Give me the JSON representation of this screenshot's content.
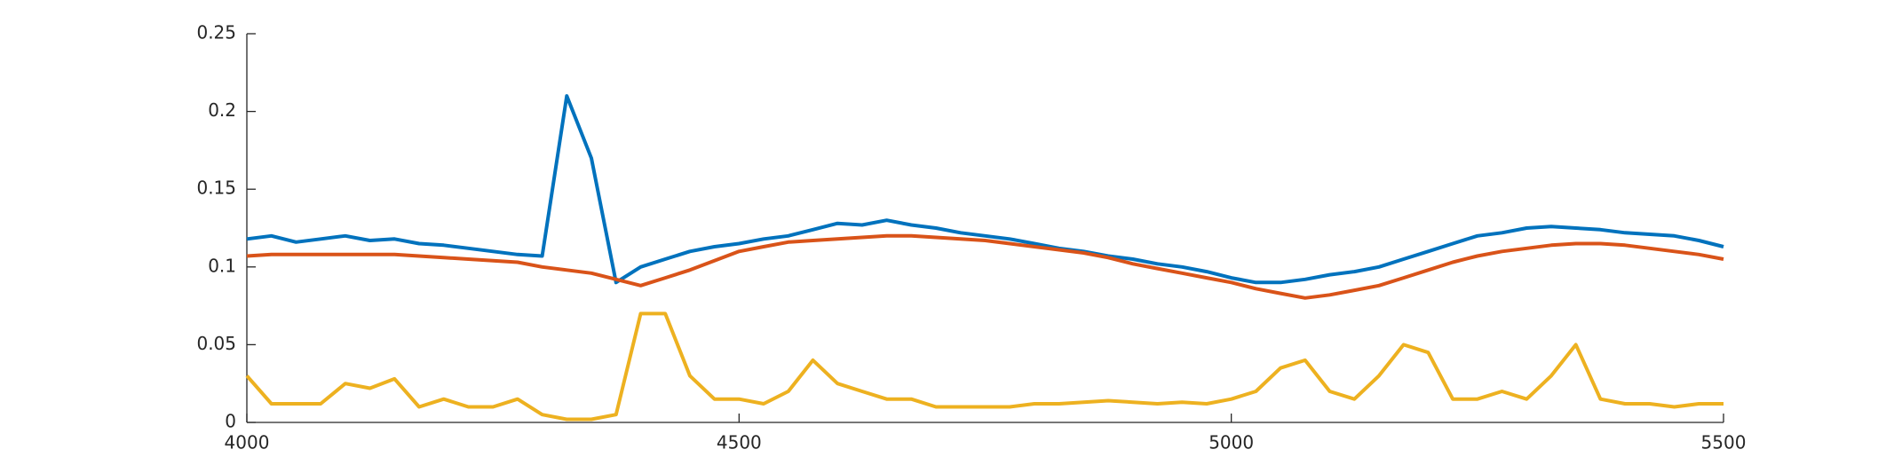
{
  "chart_data": {
    "type": "line",
    "x": [
      4000,
      4025,
      4050,
      4075,
      4100,
      4125,
      4150,
      4175,
      4200,
      4225,
      4250,
      4275,
      4300,
      4325,
      4350,
      4375,
      4400,
      4425,
      4450,
      4475,
      4500,
      4525,
      4550,
      4575,
      4600,
      4625,
      4650,
      4675,
      4700,
      4725,
      4750,
      4775,
      4800,
      4825,
      4850,
      4875,
      4900,
      4925,
      4950,
      4975,
      5000,
      5025,
      5050,
      5075,
      5100,
      5125,
      5150,
      5175,
      5200,
      5225,
      5250,
      5275,
      5300,
      5325,
      5350,
      5375,
      5400,
      5425,
      5450,
      5475,
      5500
    ],
    "series": [
      {
        "color": "#0072BD",
        "values": [
          0.118,
          0.12,
          0.116,
          0.118,
          0.12,
          0.117,
          0.118,
          0.115,
          0.114,
          0.112,
          0.11,
          0.108,
          0.107,
          0.21,
          0.17,
          0.09,
          0.1,
          0.105,
          0.11,
          0.113,
          0.115,
          0.118,
          0.12,
          0.124,
          0.128,
          0.127,
          0.13,
          0.127,
          0.125,
          0.122,
          0.12,
          0.118,
          0.115,
          0.112,
          0.11,
          0.107,
          0.105,
          0.102,
          0.1,
          0.097,
          0.093,
          0.09,
          0.09,
          0.092,
          0.095,
          0.097,
          0.1,
          0.105,
          0.11,
          0.115,
          0.12,
          0.122,
          0.125,
          0.126,
          0.125,
          0.124,
          0.122,
          0.121,
          0.12,
          0.117,
          0.113
        ]
      },
      {
        "color": "#D95319",
        "values": [
          0.107,
          0.108,
          0.108,
          0.108,
          0.108,
          0.108,
          0.108,
          0.107,
          0.106,
          0.105,
          0.104,
          0.103,
          0.1,
          0.098,
          0.096,
          0.092,
          0.088,
          0.093,
          0.098,
          0.104,
          0.11,
          0.113,
          0.116,
          0.117,
          0.118,
          0.119,
          0.12,
          0.12,
          0.119,
          0.118,
          0.117,
          0.115,
          0.113,
          0.111,
          0.109,
          0.106,
          0.102,
          0.099,
          0.096,
          0.093,
          0.09,
          0.086,
          0.083,
          0.08,
          0.082,
          0.085,
          0.088,
          0.093,
          0.098,
          0.103,
          0.107,
          0.11,
          0.112,
          0.114,
          0.115,
          0.115,
          0.114,
          0.112,
          0.11,
          0.108,
          0.105
        ]
      },
      {
        "color": "#EDB120",
        "values": [
          0.03,
          0.012,
          0.012,
          0.012,
          0.025,
          0.022,
          0.028,
          0.01,
          0.015,
          0.01,
          0.01,
          0.015,
          0.005,
          0.002,
          0.002,
          0.005,
          0.07,
          0.07,
          0.03,
          0.015,
          0.015,
          0.012,
          0.02,
          0.04,
          0.025,
          0.02,
          0.015,
          0.015,
          0.01,
          0.01,
          0.01,
          0.01,
          0.012,
          0.012,
          0.013,
          0.014,
          0.013,
          0.012,
          0.013,
          0.012,
          0.015,
          0.02,
          0.035,
          0.04,
          0.02,
          0.015,
          0.03,
          0.05,
          0.045,
          0.015,
          0.015,
          0.02,
          0.015,
          0.03,
          0.05,
          0.015,
          0.012,
          0.012,
          0.01,
          0.012,
          0.012
        ]
      }
    ],
    "xlim": [
      4000,
      5500
    ],
    "xticks": [
      4000,
      4500,
      5000,
      5500
    ],
    "ylim": [
      0,
      0.25
    ],
    "yticks": [
      0,
      0.05,
      0.1,
      0.15,
      0.2,
      0.25
    ],
    "grid": false
  }
}
